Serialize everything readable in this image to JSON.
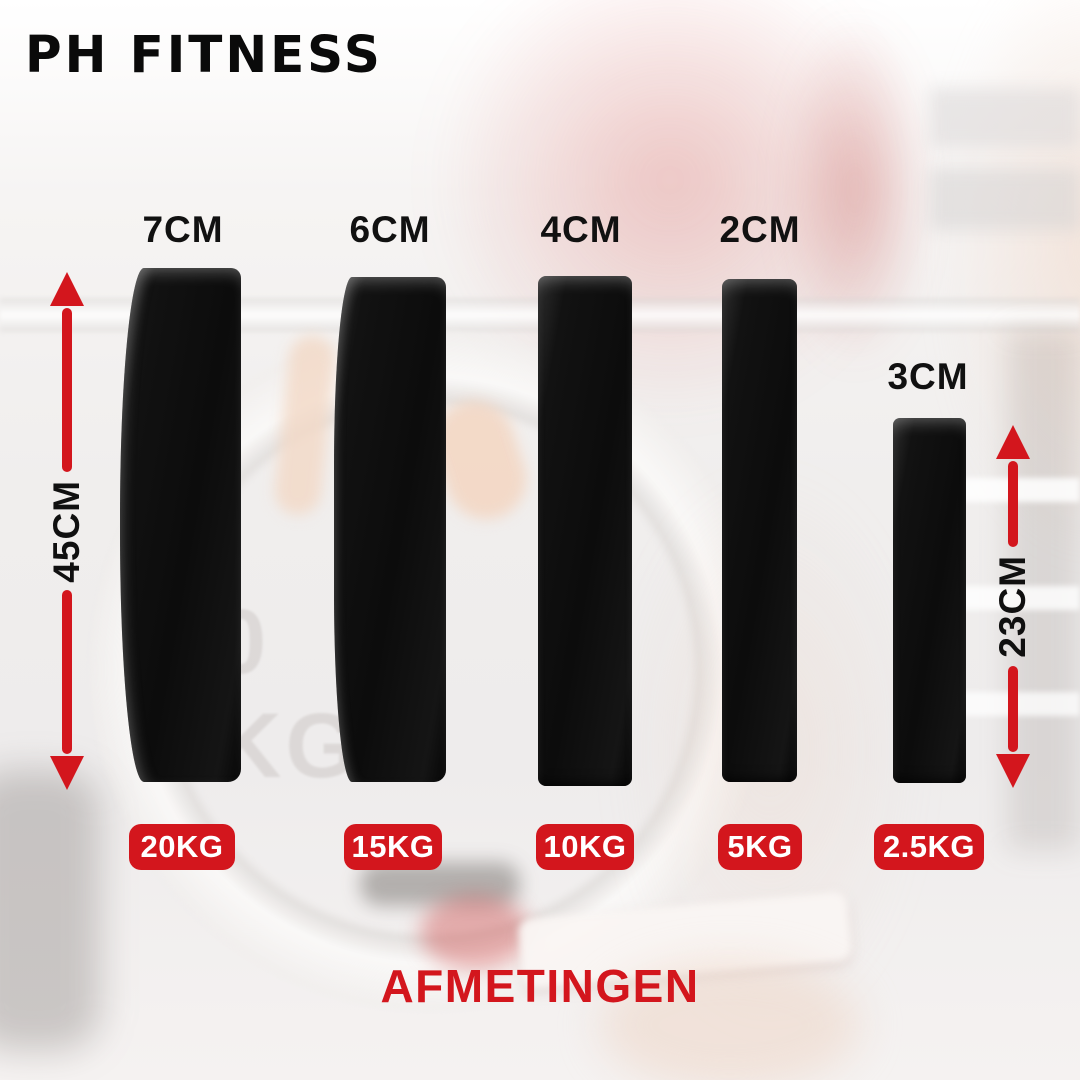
{
  "brand": "PH FITNESS",
  "title": "AFMETINGEN",
  "colors": {
    "accent_red": "#d3161d",
    "plate_black": "#121212",
    "label_black": "#111111",
    "badge_text": "#ffffff"
  },
  "dimensions": {
    "left_height": "45CM",
    "right_height": "23CM"
  },
  "background_watermark": "0 KG",
  "plates": [
    {
      "thickness": "7CM",
      "weight": "20KG"
    },
    {
      "thickness": "6CM",
      "weight": "15KG"
    },
    {
      "thickness": "4CM",
      "weight": "10KG"
    },
    {
      "thickness": "2CM",
      "weight": "5KG"
    },
    {
      "thickness": "3CM",
      "weight": "2.5KG"
    }
  ]
}
